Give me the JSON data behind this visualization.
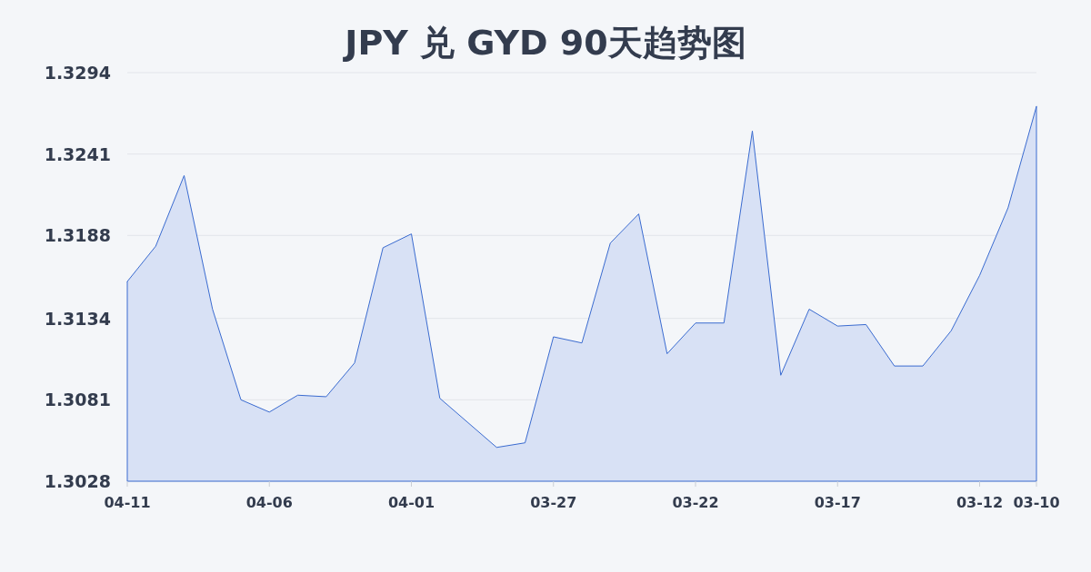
{
  "chart_data": {
    "type": "area",
    "title": "JPY 兑 GYD 90天趋势图",
    "categories": [
      "04-11",
      null,
      null,
      null,
      null,
      "04-06",
      null,
      null,
      null,
      null,
      "04-01",
      null,
      null,
      null,
      null,
      "03-27",
      null,
      null,
      null,
      null,
      "03-22",
      null,
      null,
      null,
      null,
      "03-17",
      null,
      null,
      null,
      null,
      "03-12",
      null,
      "03-10"
    ],
    "values": [
      1.3158,
      1.3181,
      1.3227,
      1.314,
      1.3081,
      1.3073,
      1.3084,
      1.3083,
      1.3105,
      1.318,
      1.3189,
      1.3082,
      1.3066,
      1.305,
      1.3053,
      1.3122,
      1.3118,
      1.3183,
      1.3202,
      1.3111,
      1.3131,
      1.3131,
      1.3256,
      1.3097,
      1.314,
      1.3129,
      1.313,
      1.3103,
      1.3103,
      1.3126,
      1.3162,
      1.3206,
      1.3272
    ],
    "color": "#3a6bd0",
    "ylim": [
      1.3028,
      1.3294
    ],
    "yticks": [
      1.3028,
      1.3081,
      1.3134,
      1.3188,
      1.3241,
      1.3294
    ],
    "grid": "y"
  }
}
